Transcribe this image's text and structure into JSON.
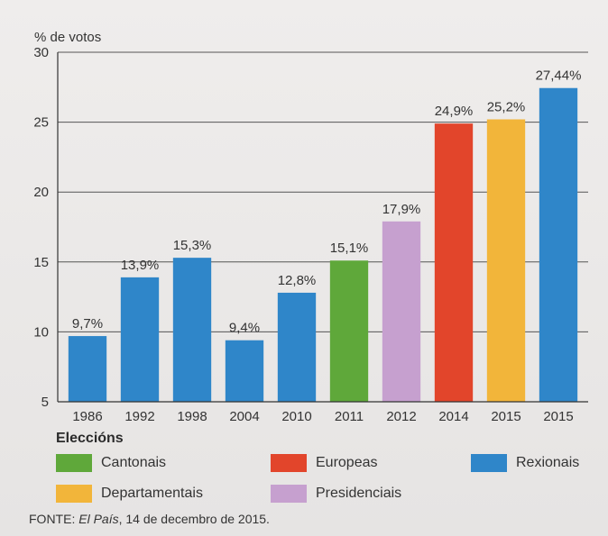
{
  "chart_data": {
    "type": "bar",
    "ylabel": "% de votos",
    "ylim": [
      5,
      30
    ],
    "yticks": [
      5,
      10,
      15,
      20,
      25,
      30
    ],
    "grid": true,
    "categories": [
      "1986",
      "1992",
      "1998",
      "2004",
      "2010",
      "2011",
      "2012",
      "2014",
      "2015",
      "2015"
    ],
    "values": [
      9.7,
      13.9,
      15.3,
      9.4,
      12.8,
      15.1,
      17.9,
      24.9,
      25.2,
      27.44
    ],
    "value_labels": [
      "9,7%",
      "13,9%",
      "15,3%",
      "9,4%",
      "12,8%",
      "15,1%",
      "17,9%",
      "24,9%",
      "25,2%",
      "27,44%"
    ],
    "election_types": [
      "Rexionais",
      "Rexionais",
      "Rexionais",
      "Rexionais",
      "Rexionais",
      "Cantonais",
      "Presidenciais",
      "Europeas",
      "Departamentais",
      "Rexionais"
    ],
    "legend_title": "Eleccións",
    "legend": [
      {
        "name": "Cantonais",
        "color": "#5fa83a"
      },
      {
        "name": "Europeas",
        "color": "#e2452b"
      },
      {
        "name": "Rexionais",
        "color": "#2f86c9"
      },
      {
        "name": "Departamentais",
        "color": "#f2b53a"
      },
      {
        "name": "Presidenciais",
        "color": "#c6a0cf"
      }
    ]
  },
  "source": {
    "prefix": "FONTE: ",
    "publication": "El País",
    "suffix": ", 14 de decembro de 2015."
  }
}
